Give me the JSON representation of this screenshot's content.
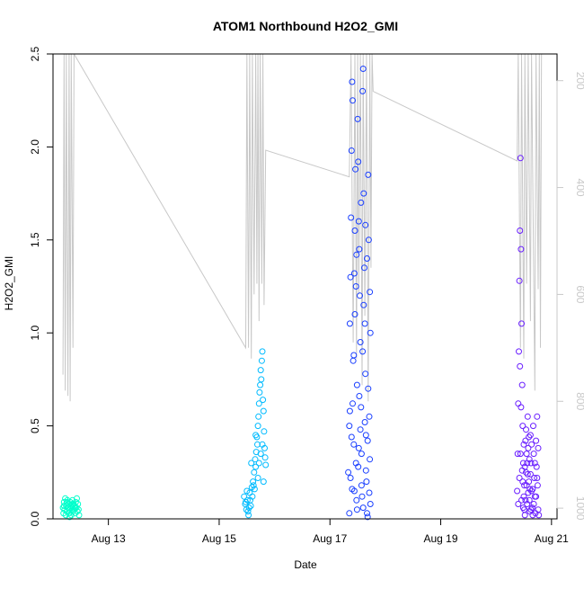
{
  "chart_data": {
    "type": "scatter",
    "title": "ATOM1 Northbound H2O2_GMI",
    "xlabel": "Date",
    "ylabel": "H2O2_GMI",
    "x_unit": "days (August)",
    "xlim": [
      12.0,
      21.1
    ],
    "ylim": [
      0,
      2.5
    ],
    "x_ticks": [
      {
        "value": 13,
        "label": "Aug 13"
      },
      {
        "value": 15,
        "label": "Aug 15"
      },
      {
        "value": 17,
        "label": "Aug 17"
      },
      {
        "value": 19,
        "label": "Aug 19"
      },
      {
        "value": 21,
        "label": "Aug 21"
      }
    ],
    "y_ticks": [
      {
        "value": 0.0,
        "label": "0.0"
      },
      {
        "value": 0.5,
        "label": "0.5"
      },
      {
        "value": 1.0,
        "label": "1.0"
      },
      {
        "value": 1.5,
        "label": "1.5"
      },
      {
        "value": 2.0,
        "label": "2.0"
      },
      {
        "value": 2.5,
        "label": "2.5"
      }
    ],
    "secondary_axis": {
      "side": "right",
      "color": "#c8c8c8",
      "reversed": true,
      "range": [
        1020,
        150
      ],
      "ticks": [
        {
          "value": 200,
          "label": "200"
        },
        {
          "value": 400,
          "label": "400"
        },
        {
          "value": 600,
          "label": "600"
        },
        {
          "value": 800,
          "label": "800"
        },
        {
          "value": 1000,
          "label": "1000"
        }
      ]
    },
    "grid": false,
    "legend": "none",
    "series": [
      {
        "color": "#00ffcc",
        "points": [
          [
            12.18,
            0.06
          ],
          [
            12.19,
            0.03
          ],
          [
            12.2,
            0.09
          ],
          [
            12.21,
            0.05
          ],
          [
            12.22,
            0.11
          ],
          [
            12.23,
            0.02
          ],
          [
            12.24,
            0.07
          ],
          [
            12.25,
            0.04
          ],
          [
            12.26,
            0.1
          ],
          [
            12.27,
            0.06
          ],
          [
            12.28,
            0.08
          ],
          [
            12.29,
            0.03
          ],
          [
            12.3,
            0.05
          ],
          [
            12.31,
            0.09
          ],
          [
            12.32,
            0.07
          ],
          [
            12.33,
            0.02
          ],
          [
            12.34,
            0.06
          ],
          [
            12.35,
            0.1
          ],
          [
            12.36,
            0.04
          ],
          [
            12.37,
            0.08
          ],
          [
            12.38,
            0.05
          ],
          [
            12.39,
            0.07
          ],
          [
            12.4,
            0.03
          ],
          [
            12.41,
            0.09
          ],
          [
            12.42,
            0.06
          ],
          [
            12.43,
            0.11
          ],
          [
            12.44,
            0.04
          ],
          [
            12.45,
            0.08
          ],
          [
            12.46,
            0.05
          ],
          [
            12.47,
            0.02
          ],
          [
            12.2,
            0.07
          ],
          [
            12.25,
            0.09
          ],
          [
            12.3,
            0.01
          ],
          [
            12.35,
            0.08
          ],
          [
            12.4,
            0.06
          ]
        ]
      },
      {
        "color": "#00bbff",
        "points": [
          [
            15.45,
            0.12
          ],
          [
            15.47,
            0.08
          ],
          [
            15.49,
            0.05
          ],
          [
            15.51,
            0.1
          ],
          [
            15.53,
            0.02
          ],
          [
            15.55,
            0.14
          ],
          [
            15.57,
            0.07
          ],
          [
            15.59,
            0.17
          ],
          [
            15.61,
            0.2
          ],
          [
            15.63,
            0.25
          ],
          [
            15.65,
            0.32
          ],
          [
            15.66,
            0.28
          ],
          [
            15.67,
            0.36
          ],
          [
            15.68,
            0.44
          ],
          [
            15.69,
            0.4
          ],
          [
            15.7,
            0.5
          ],
          [
            15.71,
            0.55
          ],
          [
            15.72,
            0.62
          ],
          [
            15.73,
            0.68
          ],
          [
            15.74,
            0.72
          ],
          [
            15.75,
            0.8
          ],
          [
            15.76,
            0.75
          ],
          [
            15.77,
            0.85
          ],
          [
            15.78,
            0.9
          ],
          [
            15.79,
            0.64
          ],
          [
            15.8,
            0.58
          ],
          [
            15.81,
            0.47
          ],
          [
            15.82,
            0.38
          ],
          [
            15.83,
            0.33
          ],
          [
            15.84,
            0.29
          ],
          [
            15.64,
            0.16
          ],
          [
            15.6,
            0.12
          ],
          [
            15.58,
            0.3
          ],
          [
            15.56,
            0.1
          ],
          [
            15.54,
            0.06
          ],
          [
            15.52,
            0.04
          ],
          [
            15.5,
            0.15
          ],
          [
            15.48,
            0.09
          ],
          [
            15.62,
            0.18
          ],
          [
            15.7,
            0.22
          ],
          [
            15.75,
            0.35
          ],
          [
            15.8,
            0.2
          ],
          [
            15.66,
            0.45
          ],
          [
            15.72,
            0.3
          ],
          [
            15.78,
            0.4
          ]
        ]
      },
      {
        "color": "#1a3fff",
        "points": [
          [
            17.33,
            0.25
          ],
          [
            17.35,
            0.5
          ],
          [
            17.36,
            1.05
          ],
          [
            17.37,
            1.3
          ],
          [
            17.38,
            1.62
          ],
          [
            17.39,
            1.98
          ],
          [
            17.4,
            2.35
          ],
          [
            17.41,
            2.25
          ],
          [
            17.42,
            0.85
          ],
          [
            17.43,
            0.4
          ],
          [
            17.44,
            0.15
          ],
          [
            17.45,
            1.55
          ],
          [
            17.46,
            1.88
          ],
          [
            17.47,
            1.25
          ],
          [
            17.48,
            1.42
          ],
          [
            17.49,
            0.72
          ],
          [
            17.5,
            2.15
          ],
          [
            17.51,
            1.92
          ],
          [
            17.52,
            1.6
          ],
          [
            17.53,
            1.45
          ],
          [
            17.54,
            1.2
          ],
          [
            17.55,
            0.95
          ],
          [
            17.56,
            0.6
          ],
          [
            17.57,
            0.35
          ],
          [
            17.58,
            0.12
          ],
          [
            17.59,
            2.3
          ],
          [
            17.6,
            2.42
          ],
          [
            17.61,
            1.75
          ],
          [
            17.62,
            1.35
          ],
          [
            17.63,
            1.05
          ],
          [
            17.64,
            0.78
          ],
          [
            17.65,
            0.45
          ],
          [
            17.66,
            0.2
          ],
          [
            17.67,
            0.03
          ],
          [
            17.68,
            0.01
          ],
          [
            17.69,
            1.85
          ],
          [
            17.7,
            1.5
          ],
          [
            17.71,
            0.55
          ],
          [
            17.72,
            0.32
          ],
          [
            17.73,
            0.08
          ],
          [
            17.35,
            0.03
          ],
          [
            17.37,
            0.22
          ],
          [
            17.39,
            0.44
          ],
          [
            17.41,
            0.62
          ],
          [
            17.43,
            0.88
          ],
          [
            17.45,
            1.1
          ],
          [
            17.47,
            0.3
          ],
          [
            17.49,
            0.05
          ],
          [
            17.51,
            0.28
          ],
          [
            17.53,
            0.66
          ],
          [
            17.55,
            0.48
          ],
          [
            17.57,
            0.18
          ],
          [
            17.59,
            0.9
          ],
          [
            17.61,
            1.15
          ],
          [
            17.63,
            0.52
          ],
          [
            17.65,
            0.26
          ],
          [
            17.67,
            1.4
          ],
          [
            17.69,
            0.7
          ],
          [
            17.71,
            0.14
          ],
          [
            17.73,
            1.0
          ],
          [
            17.36,
            0.58
          ],
          [
            17.4,
            0.16
          ],
          [
            17.44,
            1.32
          ],
          [
            17.48,
            0.1
          ],
          [
            17.52,
            0.38
          ],
          [
            17.56,
            1.7
          ],
          [
            17.6,
            0.06
          ],
          [
            17.64,
            1.58
          ],
          [
            17.68,
            0.42
          ],
          [
            17.72,
            1.22
          ]
        ]
      },
      {
        "color": "#6a1fff",
        "points": [
          [
            20.38,
            0.15
          ],
          [
            20.39,
            0.35
          ],
          [
            20.4,
            0.62
          ],
          [
            20.41,
            0.9
          ],
          [
            20.42,
            1.28
          ],
          [
            20.43,
            1.55
          ],
          [
            20.44,
            1.94
          ],
          [
            20.45,
            1.45
          ],
          [
            20.46,
            1.05
          ],
          [
            20.47,
            0.72
          ],
          [
            20.48,
            0.5
          ],
          [
            20.49,
            0.3
          ],
          [
            20.5,
            0.12
          ],
          [
            20.51,
            0.05
          ],
          [
            20.52,
            0.02
          ],
          [
            20.53,
            0.42
          ],
          [
            20.54,
            0.25
          ],
          [
            20.55,
            0.18
          ],
          [
            20.56,
            0.08
          ],
          [
            20.57,
            0.55
          ],
          [
            20.58,
            0.38
          ],
          [
            20.59,
            0.2
          ],
          [
            20.6,
            0.1
          ],
          [
            20.61,
            0.04
          ],
          [
            20.62,
            0.45
          ],
          [
            20.63,
            0.3
          ],
          [
            20.64,
            0.15
          ],
          [
            20.65,
            0.06
          ],
          [
            20.66,
            0.02
          ],
          [
            20.67,
            0.5
          ],
          [
            20.68,
            0.35
          ],
          [
            20.69,
            0.22
          ],
          [
            20.7,
            0.12
          ],
          [
            20.71,
            0.03
          ],
          [
            20.72,
            0.42
          ],
          [
            20.73,
            0.28
          ],
          [
            20.74,
            0.55
          ],
          [
            20.75,
            0.18
          ],
          [
            20.76,
            0.05
          ],
          [
            20.77,
            0.02
          ],
          [
            20.4,
            0.08
          ],
          [
            20.42,
            0.22
          ],
          [
            20.44,
            0.35
          ],
          [
            20.46,
            0.1
          ],
          [
            20.48,
            0.2
          ],
          [
            20.5,
            0.4
          ],
          [
            20.52,
            0.28
          ],
          [
            20.54,
            0.48
          ],
          [
            20.56,
            0.3
          ],
          [
            20.58,
            0.14
          ],
          [
            20.6,
            0.32
          ],
          [
            20.62,
            0.24
          ],
          [
            20.64,
            0.4
          ],
          [
            20.66,
            0.16
          ],
          [
            20.68,
            0.08
          ],
          [
            20.7,
            0.3
          ],
          [
            20.72,
            0.12
          ],
          [
            20.74,
            0.22
          ],
          [
            20.76,
            0.38
          ],
          [
            20.43,
            0.82
          ],
          [
            20.45,
            0.6
          ],
          [
            20.47,
            0.26
          ],
          [
            20.49,
            0.06
          ],
          [
            20.51,
            0.18
          ],
          [
            20.53,
            0.1
          ],
          [
            20.55,
            0.35
          ],
          [
            20.57,
            0.24
          ],
          [
            20.59,
            0.44
          ],
          [
            20.61,
            0.16
          ],
          [
            20.63,
            0.05
          ]
        ]
      }
    ],
    "altitude_series": {
      "color": "#c8c8c8",
      "points": [
        [
          12.18,
          750
        ],
        [
          12.2,
          150
        ],
        [
          12.22,
          780
        ],
        [
          12.24,
          150
        ],
        [
          12.27,
          790
        ],
        [
          12.29,
          150
        ],
        [
          12.31,
          800
        ],
        [
          12.33,
          150
        ],
        [
          12.36,
          700
        ],
        [
          12.38,
          150
        ],
        [
          15.48,
          700
        ],
        [
          15.5,
          150
        ],
        [
          15.53,
          700
        ],
        [
          15.55,
          150
        ],
        [
          15.58,
          720
        ],
        [
          15.6,
          150
        ],
        [
          15.63,
          600
        ],
        [
          15.66,
          150
        ],
        [
          15.68,
          580
        ],
        [
          15.7,
          150
        ],
        [
          15.72,
          650
        ],
        [
          15.74,
          150
        ],
        [
          15.77,
          580
        ],
        [
          15.79,
          150
        ],
        [
          15.81,
          620
        ],
        [
          15.84,
          330
        ],
        [
          17.35,
          380
        ],
        [
          17.38,
          150
        ],
        [
          17.42,
          690
        ],
        [
          17.45,
          150
        ],
        [
          17.48,
          720
        ],
        [
          17.5,
          150
        ],
        [
          17.52,
          600
        ],
        [
          17.55,
          150
        ],
        [
          17.58,
          770
        ],
        [
          17.6,
          150
        ],
        [
          17.63,
          640
        ],
        [
          17.66,
          150
        ],
        [
          17.69,
          800
        ],
        [
          17.72,
          150
        ],
        [
          17.74,
          550
        ],
        [
          17.76,
          150
        ],
        [
          17.78,
          220
        ],
        [
          20.38,
          350
        ],
        [
          20.4,
          150
        ],
        [
          20.44,
          700
        ],
        [
          20.46,
          150
        ],
        [
          20.5,
          720
        ],
        [
          20.52,
          150
        ],
        [
          20.55,
          580
        ],
        [
          20.58,
          150
        ],
        [
          20.62,
          650
        ],
        [
          20.64,
          150
        ],
        [
          20.7,
          780
        ],
        [
          20.72,
          150
        ],
        [
          20.76,
          590
        ],
        [
          20.78,
          150
        ],
        [
          20.8,
          700
        ],
        [
          20.82,
          150
        ]
      ]
    }
  }
}
